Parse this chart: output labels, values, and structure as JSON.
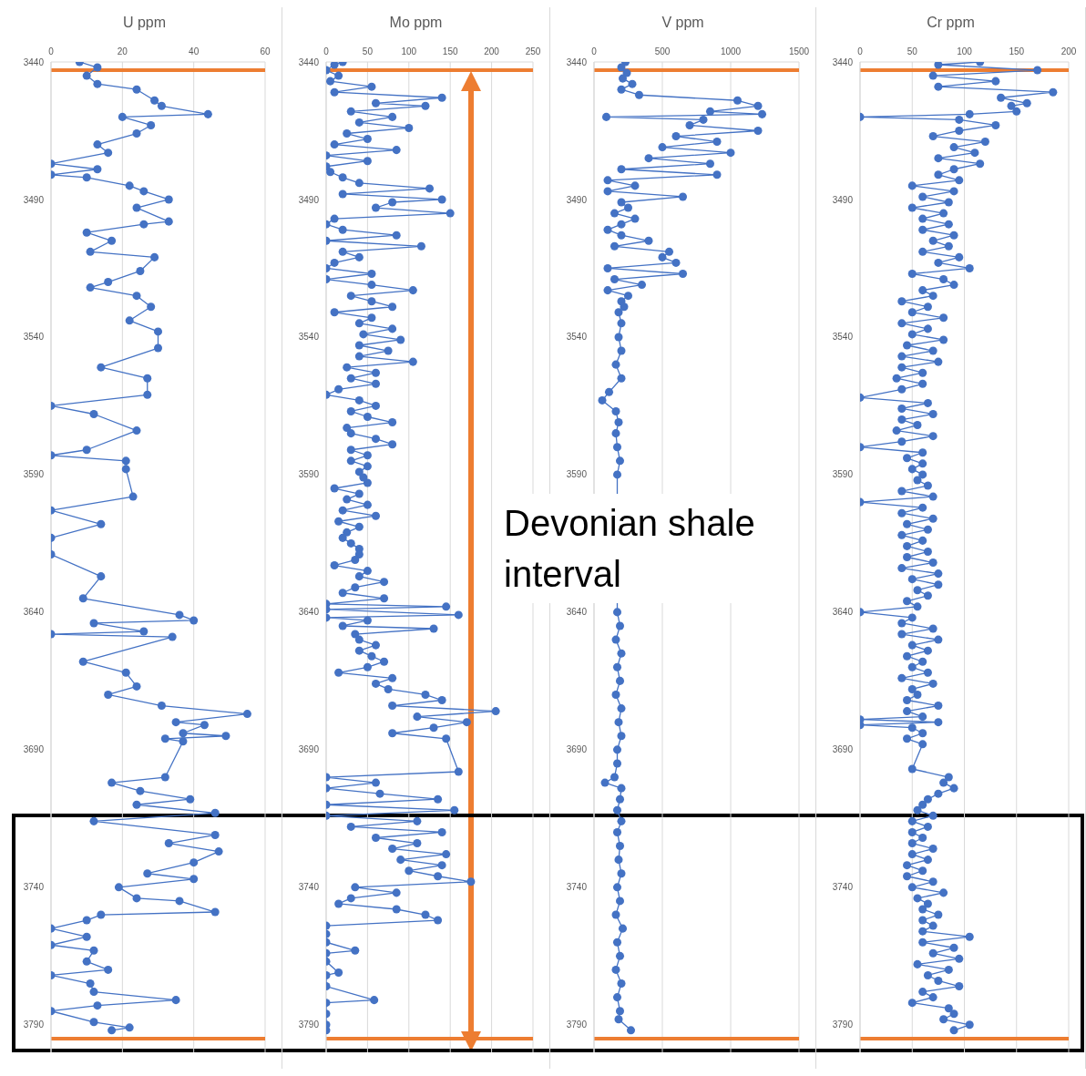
{
  "chart_data": [
    {
      "type": "line",
      "title": "U ppm",
      "xlim": [
        0,
        60
      ],
      "xticks": [
        0,
        20,
        40,
        60
      ],
      "ylim": [
        3800,
        3440
      ],
      "yticks": [
        3440,
        3490,
        3540,
        3590,
        3640,
        3690,
        3740,
        3790
      ],
      "grid": "x",
      "marker": "circle",
      "ref_lines": [
        {
          "axis": "y",
          "value": 3443,
          "color": "#ed7d31"
        },
        {
          "axis": "y",
          "value": 3795,
          "color": "#ed7d31"
        }
      ],
      "series": [
        {
          "color": "#4472c4",
          "x": [
            8,
            13,
            10,
            13,
            24,
            29,
            31,
            44,
            20,
            28,
            24,
            13,
            16,
            0,
            13,
            0,
            10,
            22,
            26,
            33,
            24,
            33,
            26,
            10,
            17,
            11,
            29,
            25,
            16,
            11,
            24,
            28,
            22,
            30,
            30,
            14,
            27,
            27,
            0,
            12,
            24,
            10,
            0,
            21,
            21,
            23,
            0,
            14,
            0,
            0,
            14,
            9,
            36,
            40,
            12,
            26,
            0,
            34,
            9,
            21,
            24,
            16,
            31,
            55,
            35,
            43,
            37,
            49,
            32,
            37,
            32,
            17,
            25,
            39,
            24,
            46,
            12,
            46,
            33,
            47,
            40,
            27,
            40,
            19,
            24,
            36,
            46,
            14,
            10,
            0,
            10,
            0,
            12,
            10,
            16,
            0,
            11,
            12,
            35,
            13,
            0,
            12,
            22,
            17
          ],
          "values": [
            3440,
            3442,
            3445,
            3448,
            3450,
            3454,
            3456,
            3459,
            3460,
            3463,
            3466,
            3470,
            3473,
            3477,
            3479,
            3481,
            3482,
            3485,
            3487,
            3490,
            3493,
            3498,
            3499,
            3502,
            3505,
            3509,
            3511,
            3516,
            3520,
            3522,
            3525,
            3529,
            3534,
            3538,
            3544,
            3551,
            3555,
            3561,
            3565,
            3568,
            3574,
            3581,
            3583,
            3585,
            3588,
            3598,
            3603,
            3608,
            3613,
            3619,
            3627,
            3635,
            3641,
            3643,
            3644,
            3647,
            3648,
            3649,
            3658,
            3662,
            3667,
            3670,
            3674,
            3677,
            3680,
            3681,
            3684,
            3685,
            3686,
            3687,
            3700,
            3702,
            3705,
            3708,
            3710,
            3713,
            3716,
            3721,
            3724,
            3727,
            3731,
            3735,
            3737,
            3740,
            3744,
            3745,
            3749,
            3750,
            3752,
            3755,
            3758,
            3761,
            3763,
            3767,
            3770,
            3772,
            3775,
            3778,
            3781,
            3783,
            3785,
            3789,
            3791,
            3792
          ]
        }
      ]
    },
    {
      "type": "line",
      "title": "Mo ppm",
      "xlim": [
        0,
        250
      ],
      "xticks": [
        0,
        50,
        100,
        150,
        200,
        250
      ],
      "ylim": [
        3800,
        3440
      ],
      "yticks": [
        3440,
        3490,
        3540,
        3590,
        3640,
        3690,
        3740,
        3790
      ],
      "grid": "x",
      "marker": "circle",
      "ref_lines": [
        {
          "axis": "y",
          "value": 3443,
          "color": "#ed7d31"
        },
        {
          "axis": "y",
          "value": 3795,
          "color": "#ed7d31"
        }
      ],
      "series": [
        {
          "color": "#4472c4",
          "x": [
            20,
            10,
            0,
            15,
            5,
            55,
            10,
            140,
            60,
            120,
            30,
            80,
            40,
            100,
            25,
            50,
            10,
            85,
            0,
            50,
            0,
            5,
            20,
            40,
            125,
            20,
            140,
            80,
            60,
            150,
            10,
            0,
            20,
            85,
            0,
            115,
            20,
            40,
            10,
            0,
            55,
            0,
            55,
            105,
            30,
            55,
            80,
            10,
            55,
            40,
            80,
            45,
            90,
            40,
            75,
            40,
            105,
            25,
            60,
            30,
            60,
            15,
            0,
            40,
            60,
            30,
            50,
            80,
            25,
            30,
            60,
            80,
            30,
            50,
            30,
            50,
            40,
            45,
            50,
            10,
            40,
            25,
            50,
            20,
            60,
            15,
            40,
            25,
            20,
            30,
            40,
            40,
            35,
            10,
            50,
            40,
            70,
            35,
            20,
            70,
            0,
            145,
            0,
            160,
            0,
            50,
            20,
            130,
            35,
            40,
            60,
            40,
            55,
            70,
            50,
            15,
            80,
            60,
            75,
            120,
            140,
            80,
            205,
            110,
            170,
            130,
            80,
            145,
            160,
            0,
            60,
            0,
            65,
            135,
            0,
            155,
            0,
            110,
            30,
            140,
            60,
            110,
            80,
            145,
            90,
            140,
            100,
            135,
            175,
            35,
            85,
            30,
            15,
            85,
            120,
            135,
            0,
            0,
            0,
            35,
            0,
            0,
            15,
            0,
            0,
            58,
            0,
            0,
            0,
            0
          ],
          "values": [
            3440,
            3441,
            3443,
            3445,
            3447,
            3449,
            3451,
            3453,
            3455,
            3456,
            3458,
            3460,
            3462,
            3464,
            3466,
            3468,
            3470,
            3472,
            3474,
            3476,
            3478,
            3480,
            3482,
            3484,
            3486,
            3488,
            3490,
            3491,
            3493,
            3495,
            3497,
            3499,
            3501,
            3503,
            3505,
            3507,
            3509,
            3511,
            3513,
            3515,
            3517,
            3519,
            3521,
            3523,
            3525,
            3527,
            3529,
            3531,
            3533,
            3535,
            3537,
            3539,
            3541,
            3543,
            3545,
            3547,
            3549,
            3551,
            3553,
            3555,
            3557,
            3559,
            3561,
            3563,
            3565,
            3567,
            3569,
            3571,
            3573,
            3575,
            3577,
            3579,
            3581,
            3583,
            3585,
            3587,
            3589,
            3591,
            3593,
            3595,
            3597,
            3599,
            3601,
            3603,
            3605,
            3607,
            3609,
            3611,
            3613,
            3615,
            3617,
            3619,
            3621,
            3623,
            3625,
            3627,
            3629,
            3631,
            3633,
            3635,
            3637,
            3638,
            3639,
            3641,
            3642,
            3643,
            3645,
            3646,
            3648,
            3650,
            3652,
            3654,
            3656,
            3658,
            3660,
            3662,
            3664,
            3666,
            3668,
            3670,
            3672,
            3674,
            3676,
            3678,
            3680,
            3682,
            3684,
            3686,
            3698,
            3700,
            3702,
            3704,
            3706,
            3708,
            3710,
            3712,
            3714,
            3716,
            3718,
            3720,
            3722,
            3724,
            3726,
            3728,
            3730,
            3732,
            3734,
            3736,
            3738,
            3740,
            3742,
            3744,
            3746,
            3748,
            3750,
            3752,
            3754,
            3757,
            3760,
            3763,
            3764,
            3767,
            3771,
            3772,
            3776,
            3781,
            3782,
            3786,
            3790,
            3792
          ]
        }
      ]
    },
    {
      "type": "line",
      "title": "V ppm",
      "xlim": [
        0,
        1500
      ],
      "xticks": [
        0,
        500,
        1000,
        1500
      ],
      "ylim": [
        3800,
        3440
      ],
      "yticks": [
        3440,
        3490,
        3540,
        3590,
        3640,
        3690,
        3740,
        3790
      ],
      "grid": "x",
      "marker": "circle",
      "ref_lines": [
        {
          "axis": "y",
          "value": 3443,
          "color": "#ed7d31"
        },
        {
          "axis": "y",
          "value": 3795,
          "color": "#ed7d31"
        }
      ],
      "annotations": [
        "Devonian shale interval"
      ],
      "series": [
        {
          "color": "#4472c4",
          "x": [
            230,
            200,
            240,
            210,
            280,
            200,
            330,
            1050,
            1200,
            850,
            1230,
            90,
            800,
            700,
            1200,
            600,
            900,
            500,
            1000,
            400,
            850,
            200,
            900,
            100,
            300,
            100,
            650,
            200,
            250,
            150,
            300,
            200,
            100,
            200,
            400,
            150,
            550,
            500,
            600,
            100,
            650,
            150,
            350,
            100,
            250,
            200,
            220,
            180,
            200,
            180,
            200,
            160,
            200,
            110,
            60,
            160,
            180,
            160,
            170,
            190,
            170,
            170,
            190,
            160,
            200,
            170,
            190,
            160,
            200,
            180,
            200,
            170,
            170,
            150,
            80,
            200,
            190,
            170,
            200,
            170,
            190,
            180,
            200,
            170,
            190,
            160,
            210,
            170,
            190,
            160,
            200,
            170,
            190,
            180,
            270
          ],
          "values": [
            3440,
            3442,
            3444,
            3446,
            3448,
            3450,
            3452,
            3454,
            3456,
            3458,
            3459,
            3460,
            3461,
            3463,
            3465,
            3467,
            3469,
            3471,
            3473,
            3475,
            3477,
            3479,
            3481,
            3483,
            3485,
            3487,
            3489,
            3491,
            3493,
            3495,
            3497,
            3499,
            3501,
            3503,
            3505,
            3507,
            3509,
            3511,
            3513,
            3515,
            3517,
            3519,
            3521,
            3523,
            3525,
            3527,
            3529,
            3531,
            3535,
            3540,
            3545,
            3550,
            3555,
            3560,
            3563,
            3567,
            3571,
            3575,
            3580,
            3585,
            3590,
            3640,
            3645,
            3650,
            3655,
            3660,
            3665,
            3670,
            3675,
            3680,
            3685,
            3690,
            3695,
            3700,
            3702,
            3704,
            3708,
            3712,
            3716,
            3720,
            3725,
            3730,
            3735,
            3740,
            3745,
            3750,
            3755,
            3760,
            3765,
            3770,
            3775,
            3780,
            3785,
            3788,
            3792
          ]
        }
      ]
    },
    {
      "type": "line",
      "title": "Cr ppm",
      "xlim": [
        0,
        200
      ],
      "xticks": [
        0,
        50,
        100,
        150,
        200
      ],
      "ylim": [
        3800,
        3440
      ],
      "yticks": [
        3440,
        3490,
        3540,
        3590,
        3640,
        3690,
        3740,
        3790
      ],
      "grid": "x",
      "marker": "circle",
      "ref_lines": [
        {
          "axis": "y",
          "value": 3443,
          "color": "#ed7d31"
        },
        {
          "axis": "y",
          "value": 3795,
          "color": "#ed7d31"
        }
      ],
      "series": [
        {
          "color": "#4472c4",
          "x": [
            115,
            75,
            170,
            70,
            130,
            75,
            185,
            135,
            160,
            145,
            150,
            105,
            0,
            95,
            130,
            95,
            70,
            120,
            90,
            110,
            75,
            115,
            90,
            75,
            95,
            50,
            90,
            60,
            85,
            50,
            80,
            60,
            85,
            60,
            90,
            70,
            85,
            60,
            95,
            75,
            105,
            50,
            80,
            90,
            60,
            70,
            40,
            65,
            50,
            80,
            40,
            65,
            50,
            80,
            45,
            70,
            40,
            75,
            40,
            60,
            35,
            60,
            40,
            0,
            65,
            40,
            70,
            40,
            55,
            35,
            70,
            40,
            0,
            60,
            45,
            60,
            50,
            60,
            55,
            65,
            40,
            70,
            0,
            60,
            40,
            70,
            45,
            65,
            40,
            60,
            45,
            65,
            45,
            70,
            40,
            75,
            50,
            75,
            55,
            65,
            45,
            55,
            0,
            50,
            40,
            70,
            40,
            75,
            50,
            65,
            45,
            60,
            50,
            65,
            40,
            70,
            50,
            55,
            45,
            75,
            45,
            60,
            0,
            75,
            0,
            50,
            60,
            45,
            60,
            50,
            85,
            80,
            90,
            75,
            65,
            60,
            55,
            70,
            50,
            65,
            50,
            60,
            50,
            70,
            50,
            65,
            45,
            60,
            45,
            70,
            50,
            80,
            55,
            65,
            60,
            75,
            60,
            70,
            60,
            105,
            60,
            90,
            70,
            95,
            55,
            85,
            65,
            75,
            95,
            60,
            70,
            50,
            85,
            90,
            80,
            105,
            90
          ],
          "values": [
            3440,
            3441,
            3443,
            3445,
            3447,
            3449,
            3451,
            3453,
            3455,
            3456,
            3458,
            3459,
            3460,
            3461,
            3463,
            3465,
            3467,
            3469,
            3471,
            3473,
            3475,
            3477,
            3479,
            3481,
            3483,
            3485,
            3487,
            3489,
            3491,
            3493,
            3495,
            3497,
            3499,
            3501,
            3503,
            3505,
            3507,
            3509,
            3511,
            3513,
            3515,
            3517,
            3519,
            3521,
            3523,
            3525,
            3527,
            3529,
            3531,
            3533,
            3535,
            3537,
            3539,
            3541,
            3543,
            3545,
            3547,
            3549,
            3551,
            3553,
            3555,
            3557,
            3559,
            3562,
            3564,
            3566,
            3568,
            3570,
            3572,
            3574,
            3576,
            3578,
            3580,
            3582,
            3584,
            3586,
            3588,
            3590,
            3592,
            3594,
            3596,
            3598,
            3600,
            3602,
            3604,
            3606,
            3608,
            3610,
            3612,
            3614,
            3616,
            3618,
            3620,
            3622,
            3624,
            3626,
            3628,
            3630,
            3632,
            3634,
            3636,
            3638,
            3640,
            3642,
            3644,
            3646,
            3648,
            3650,
            3652,
            3654,
            3656,
            3658,
            3660,
            3662,
            3664,
            3666,
            3668,
            3670,
            3672,
            3674,
            3676,
            3678,
            3679,
            3680,
            3681,
            3682,
            3684,
            3686,
            3688,
            3697,
            3700,
            3702,
            3704,
            3706,
            3708,
            3710,
            3712,
            3714,
            3716,
            3718,
            3720,
            3722,
            3724,
            3726,
            3728,
            3730,
            3732,
            3734,
            3736,
            3738,
            3740,
            3742,
            3744,
            3746,
            3748,
            3750,
            3752,
            3754,
            3756,
            3758,
            3760,
            3762,
            3764,
            3766,
            3768,
            3770,
            3772,
            3774,
            3776,
            3778,
            3780,
            3782,
            3784,
            3786,
            3788,
            3790,
            3792
          ]
        }
      ]
    }
  ]
}
